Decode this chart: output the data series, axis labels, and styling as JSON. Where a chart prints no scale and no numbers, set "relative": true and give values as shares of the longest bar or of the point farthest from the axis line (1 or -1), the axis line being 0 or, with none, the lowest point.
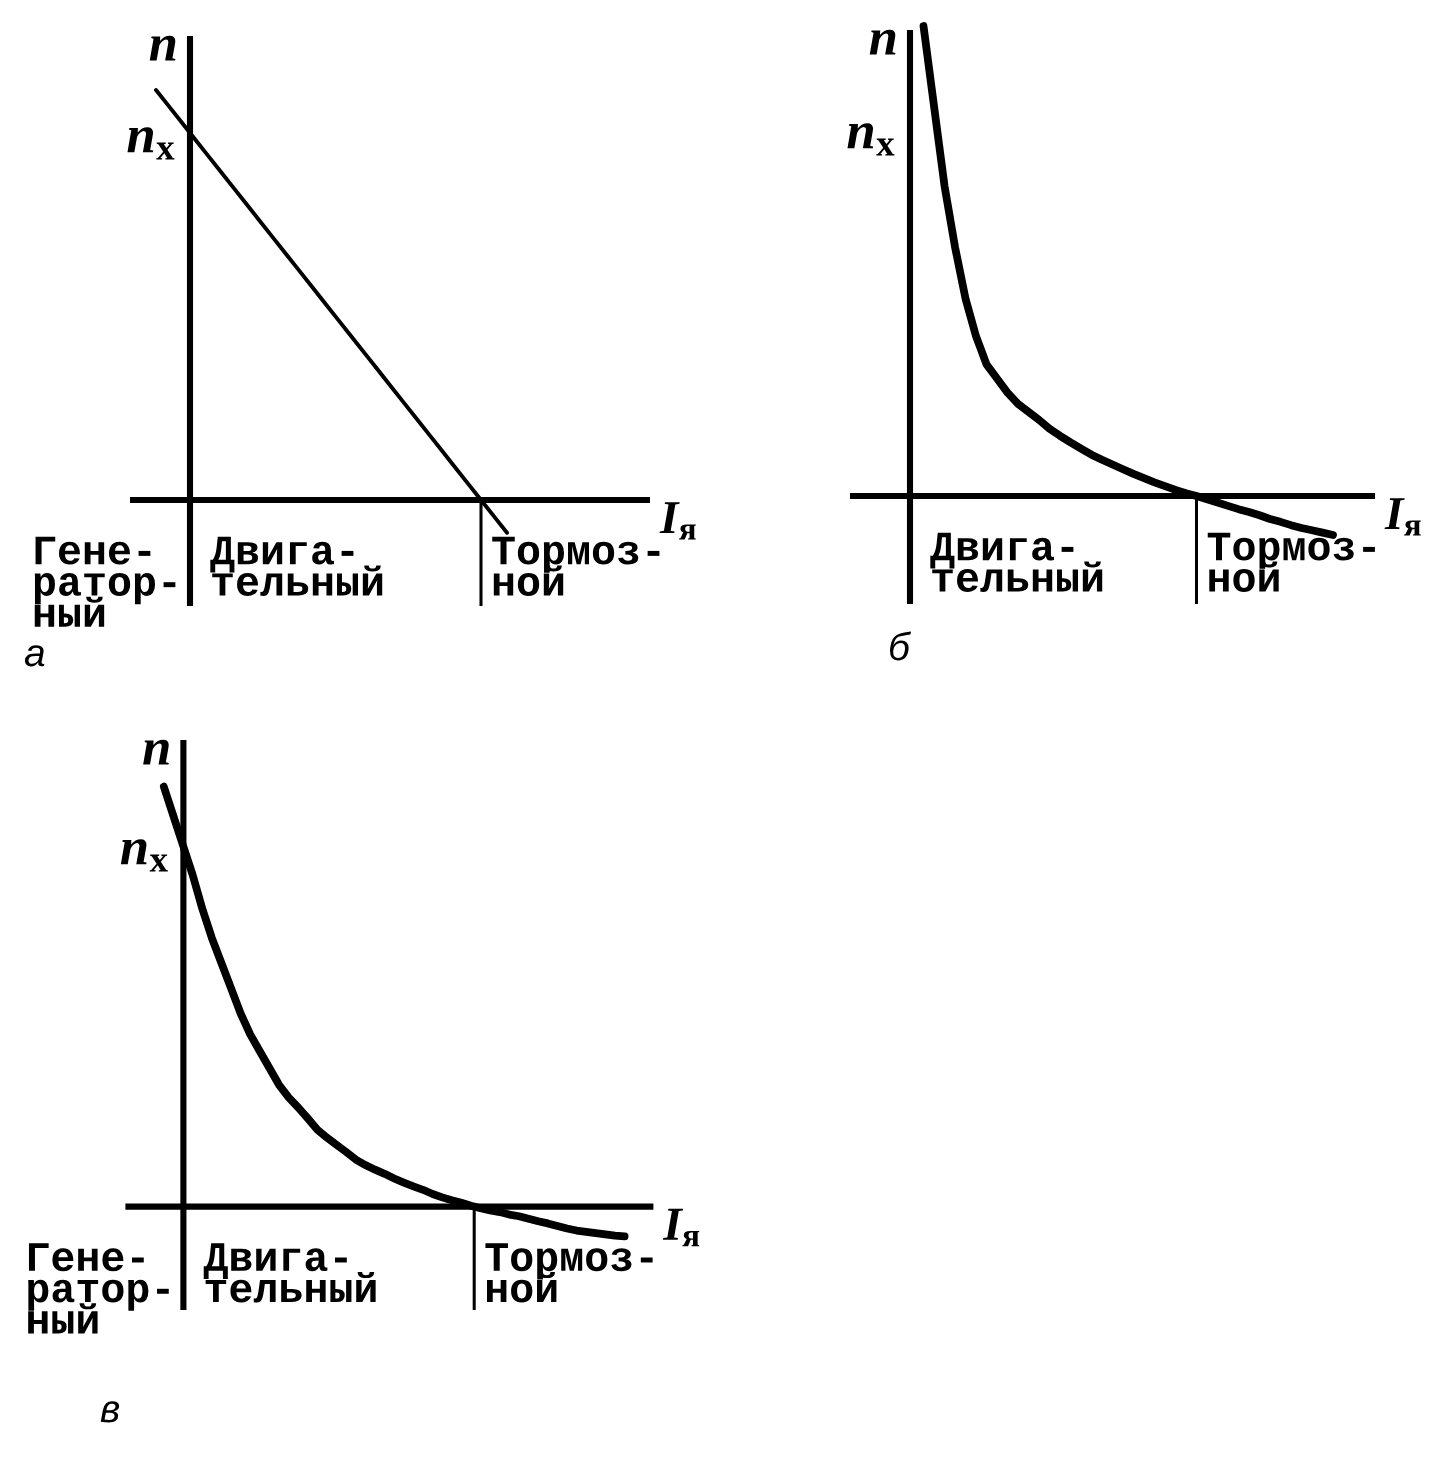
{
  "chart_data": [
    {
      "type": "line",
      "title": "а",
      "xlabel": "I$_{я}$",
      "ylabel": "n",
      "relative": true,
      "categories": [
        null,
        null,
        null,
        null,
        null,
        null,
        null,
        null,
        null,
        null,
        null,
        null,
        null,
        null,
        null,
        null,
        null,
        null,
        null,
        null,
        null,
        null,
        null,
        null,
        null,
        null,
        null,
        null,
        null,
        null,
        null,
        null,
        null,
        null,
        null,
        null,
        null,
        null,
        null,
        null,
        null
      ],
      "series": [
        {
          "color": "#000000",
          "values": [
            null,
            null,
            1.0,
            0.96,
            0.92,
            0.88,
            0.84,
            0.8,
            0.76,
            0.72,
            0.68,
            0.64,
            0.6,
            0.56,
            0.52,
            0.48,
            0.44,
            0.4,
            0.36,
            0.32,
            0.28,
            0.24,
            0.2,
            0.16,
            0.12,
            0.08,
            0.04,
            0.0,
            -0.04,
            -0.08,
            null,
            null,
            null,
            null,
            null,
            null,
            null,
            null,
            null,
            null,
            null
          ]
        }
      ],
      "annotations": [
        "n$_{х}$",
        "Гене-\nратор-\nный",
        "Двига-\nтельный",
        "Тормоз-\nной"
      ]
    },
    {
      "type": "line",
      "title": "б",
      "xlabel": "I$_{я}$",
      "ylabel": "n",
      "relative": true,
      "categories": [
        null,
        null,
        null,
        null,
        null,
        null,
        null,
        null,
        null,
        null,
        null,
        null,
        null,
        null,
        null,
        null,
        null,
        null,
        null,
        null,
        null,
        null,
        null,
        null,
        null,
        null,
        null,
        null,
        null,
        null,
        null,
        null,
        null,
        null,
        null,
        null,
        null,
        null,
        null,
        null,
        null,
        null,
        null,
        null,
        null,
        null,
        null,
        null,
        null,
        null,
        null
      ],
      "series": [
        {
          "color": "#000000",
          "values": [
            null,
            null,
            null,
            null,
            null,
            null,
            null,
            1.0,
            0.83,
            0.66,
            0.53,
            0.42,
            0.34,
            0.28,
            0.25,
            0.22,
            0.196,
            0.179,
            0.162,
            0.143,
            0.128,
            0.114,
            0.101,
            0.088,
            0.077,
            0.067,
            0.057,
            0.047,
            0.038,
            0.029,
            0.021,
            0.013,
            0.006,
            0,
            -0.007,
            -0.014,
            -0.021,
            -0.028,
            -0.034,
            -0.041,
            -0.049,
            -0.055,
            -0.062,
            -0.068,
            -0.073,
            -0.078,
            -0.083,
            null,
            null,
            null,
            null
          ]
        }
      ],
      "annotations": [
        "n$_{х}$",
        "Двига-\nтельный",
        "Тормоз-\nной"
      ]
    },
    {
      "type": "line",
      "title": "в",
      "xlabel": "I$_{я}$",
      "ylabel": "n",
      "relative": true,
      "categories": [
        null,
        null,
        null,
        null,
        null,
        null,
        null,
        null,
        null,
        null,
        null,
        null,
        null,
        null,
        null,
        null,
        null,
        null,
        null,
        null,
        null,
        null,
        null,
        null,
        null,
        null,
        null,
        null,
        null,
        null,
        null,
        null,
        null,
        null,
        null,
        null,
        null,
        null,
        null,
        null,
        null,
        null,
        null,
        null,
        null,
        null,
        null,
        null,
        null,
        null,
        null,
        null,
        null,
        null,
        null,
        null
      ],
      "series": [
        {
          "color": "#000000",
          "values": [
            null,
            null,
            null,
            null,
            1.0,
            0.93,
            0.86,
            0.79,
            0.71,
            0.64,
            0.58,
            0.52,
            0.46,
            0.41,
            0.37,
            0.33,
            0.29,
            0.26,
            0.236,
            0.21,
            0.183,
            0.164,
            0.147,
            0.13,
            0.112,
            0.099,
            0.088,
            0.078,
            0.067,
            0.057,
            0.048,
            0.04,
            0.03,
            0.022,
            0.015,
            0.009,
            0.002,
            -0.004,
            -0.009,
            -0.013,
            -0.019,
            -0.023,
            -0.029,
            -0.035,
            -0.04,
            -0.046,
            -0.052,
            -0.057,
            -0.06,
            -0.063,
            -0.066,
            -0.069,
            -0.071,
            null,
            null,
            null
          ]
        }
      ],
      "annotations": [
        "n$_{х}$",
        "Гене-\nратор-\nный",
        "Двига-\nтельный",
        "Тормоз-\nной"
      ]
    }
  ]
}
